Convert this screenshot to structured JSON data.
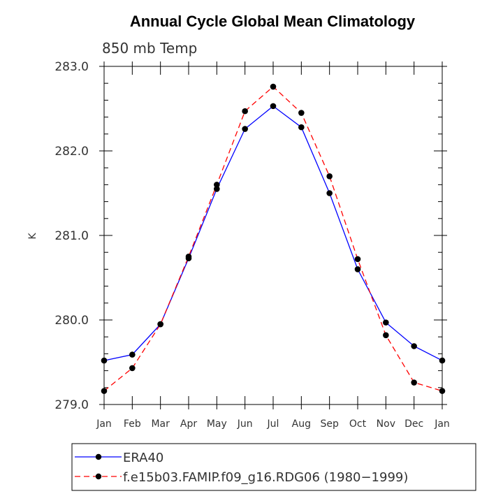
{
  "chart_data": {
    "type": "line",
    "title": "Annual Cycle Global Mean Climatology",
    "subtitle": "850 mb Temp",
    "xlabel": "",
    "ylabel": "K",
    "categories": [
      "Jan",
      "Feb",
      "Mar",
      "Apr",
      "May",
      "Jun",
      "Jul",
      "Aug",
      "Sep",
      "Oct",
      "Nov",
      "Dec",
      "Jan"
    ],
    "ylim": [
      279.0,
      283.0
    ],
    "yticks": [
      "279.0",
      "280.0",
      "281.0",
      "282.0",
      "283.0"
    ],
    "grid": false,
    "legend_position": "bottom",
    "series": [
      {
        "name": "ERA40",
        "color": "#0000ff",
        "line_style": "solid",
        "values": [
          279.52,
          279.59,
          279.95,
          280.73,
          281.55,
          282.26,
          282.53,
          282.28,
          281.5,
          280.6,
          279.97,
          279.69,
          279.52
        ]
      },
      {
        "name": "f.e15b03.FAMIP.f09_g16.RDG06 (1980−1999)",
        "color": "#ff0000",
        "line_style": "dashed",
        "values": [
          279.16,
          279.43,
          279.95,
          280.75,
          281.6,
          282.47,
          282.76,
          282.45,
          281.7,
          280.72,
          279.82,
          279.26,
          279.16
        ]
      }
    ]
  }
}
